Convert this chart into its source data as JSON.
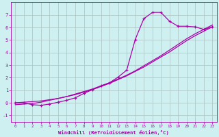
{
  "xlabel": "Windchill (Refroidissement éolien,°C)",
  "background_color": "#cff0f0",
  "line_color": "#aa00aa",
  "grid_color": "#b0c8c8",
  "xlim": [
    -0.5,
    23.5
  ],
  "ylim": [
    -1.5,
    8.0
  ],
  "xtick_labels": [
    "0",
    "1",
    "2",
    "3",
    "4",
    "5",
    "6",
    "7",
    "8",
    "9",
    "10",
    "11",
    "12",
    "13",
    "14",
    "15",
    "16",
    "17",
    "18",
    "19",
    "20",
    "21",
    "22",
    "23"
  ],
  "ytick_labels": [
    "-1",
    "0",
    "1",
    "2",
    "3",
    "4",
    "5",
    "6",
    "7"
  ],
  "ytick_vals": [
    -1,
    0,
    1,
    2,
    3,
    4,
    5,
    6,
    7
  ],
  "curve_x": [
    0,
    1,
    2,
    3,
    4,
    5,
    6,
    7,
    8,
    9,
    10,
    11,
    12,
    13,
    14,
    15,
    16,
    17,
    18,
    19,
    20,
    21,
    22,
    23
  ],
  "curve_y": [
    0.0,
    0.0,
    -0.15,
    -0.2,
    -0.1,
    0.05,
    0.2,
    0.4,
    0.75,
    1.05,
    1.35,
    1.6,
    2.05,
    2.6,
    5.05,
    6.7,
    7.2,
    7.2,
    6.5,
    6.1,
    6.1,
    6.05,
    5.85,
    6.05
  ],
  "linear1_x": [
    0,
    1,
    2,
    3,
    4,
    5,
    6,
    7,
    8,
    9,
    10,
    11,
    12,
    13,
    14,
    15,
    16,
    17,
    18,
    19,
    20,
    21,
    22,
    23
  ],
  "linear1_y": [
    0.0,
    0.05,
    0.1,
    0.15,
    0.25,
    0.35,
    0.5,
    0.65,
    0.85,
    1.05,
    1.3,
    1.55,
    1.85,
    2.15,
    2.5,
    2.85,
    3.25,
    3.65,
    4.05,
    4.5,
    4.95,
    5.35,
    5.7,
    6.05
  ],
  "linear2_x": [
    0,
    1,
    2,
    3,
    4,
    5,
    6,
    7,
    8,
    9,
    10,
    11,
    12,
    13,
    14,
    15,
    16,
    17,
    18,
    19,
    20,
    21,
    22,
    23
  ],
  "linear2_y": [
    -0.15,
    -0.1,
    -0.05,
    0.05,
    0.2,
    0.35,
    0.5,
    0.7,
    0.9,
    1.1,
    1.35,
    1.6,
    1.9,
    2.2,
    2.55,
    2.95,
    3.35,
    3.75,
    4.2,
    4.65,
    5.1,
    5.5,
    5.85,
    6.2
  ]
}
